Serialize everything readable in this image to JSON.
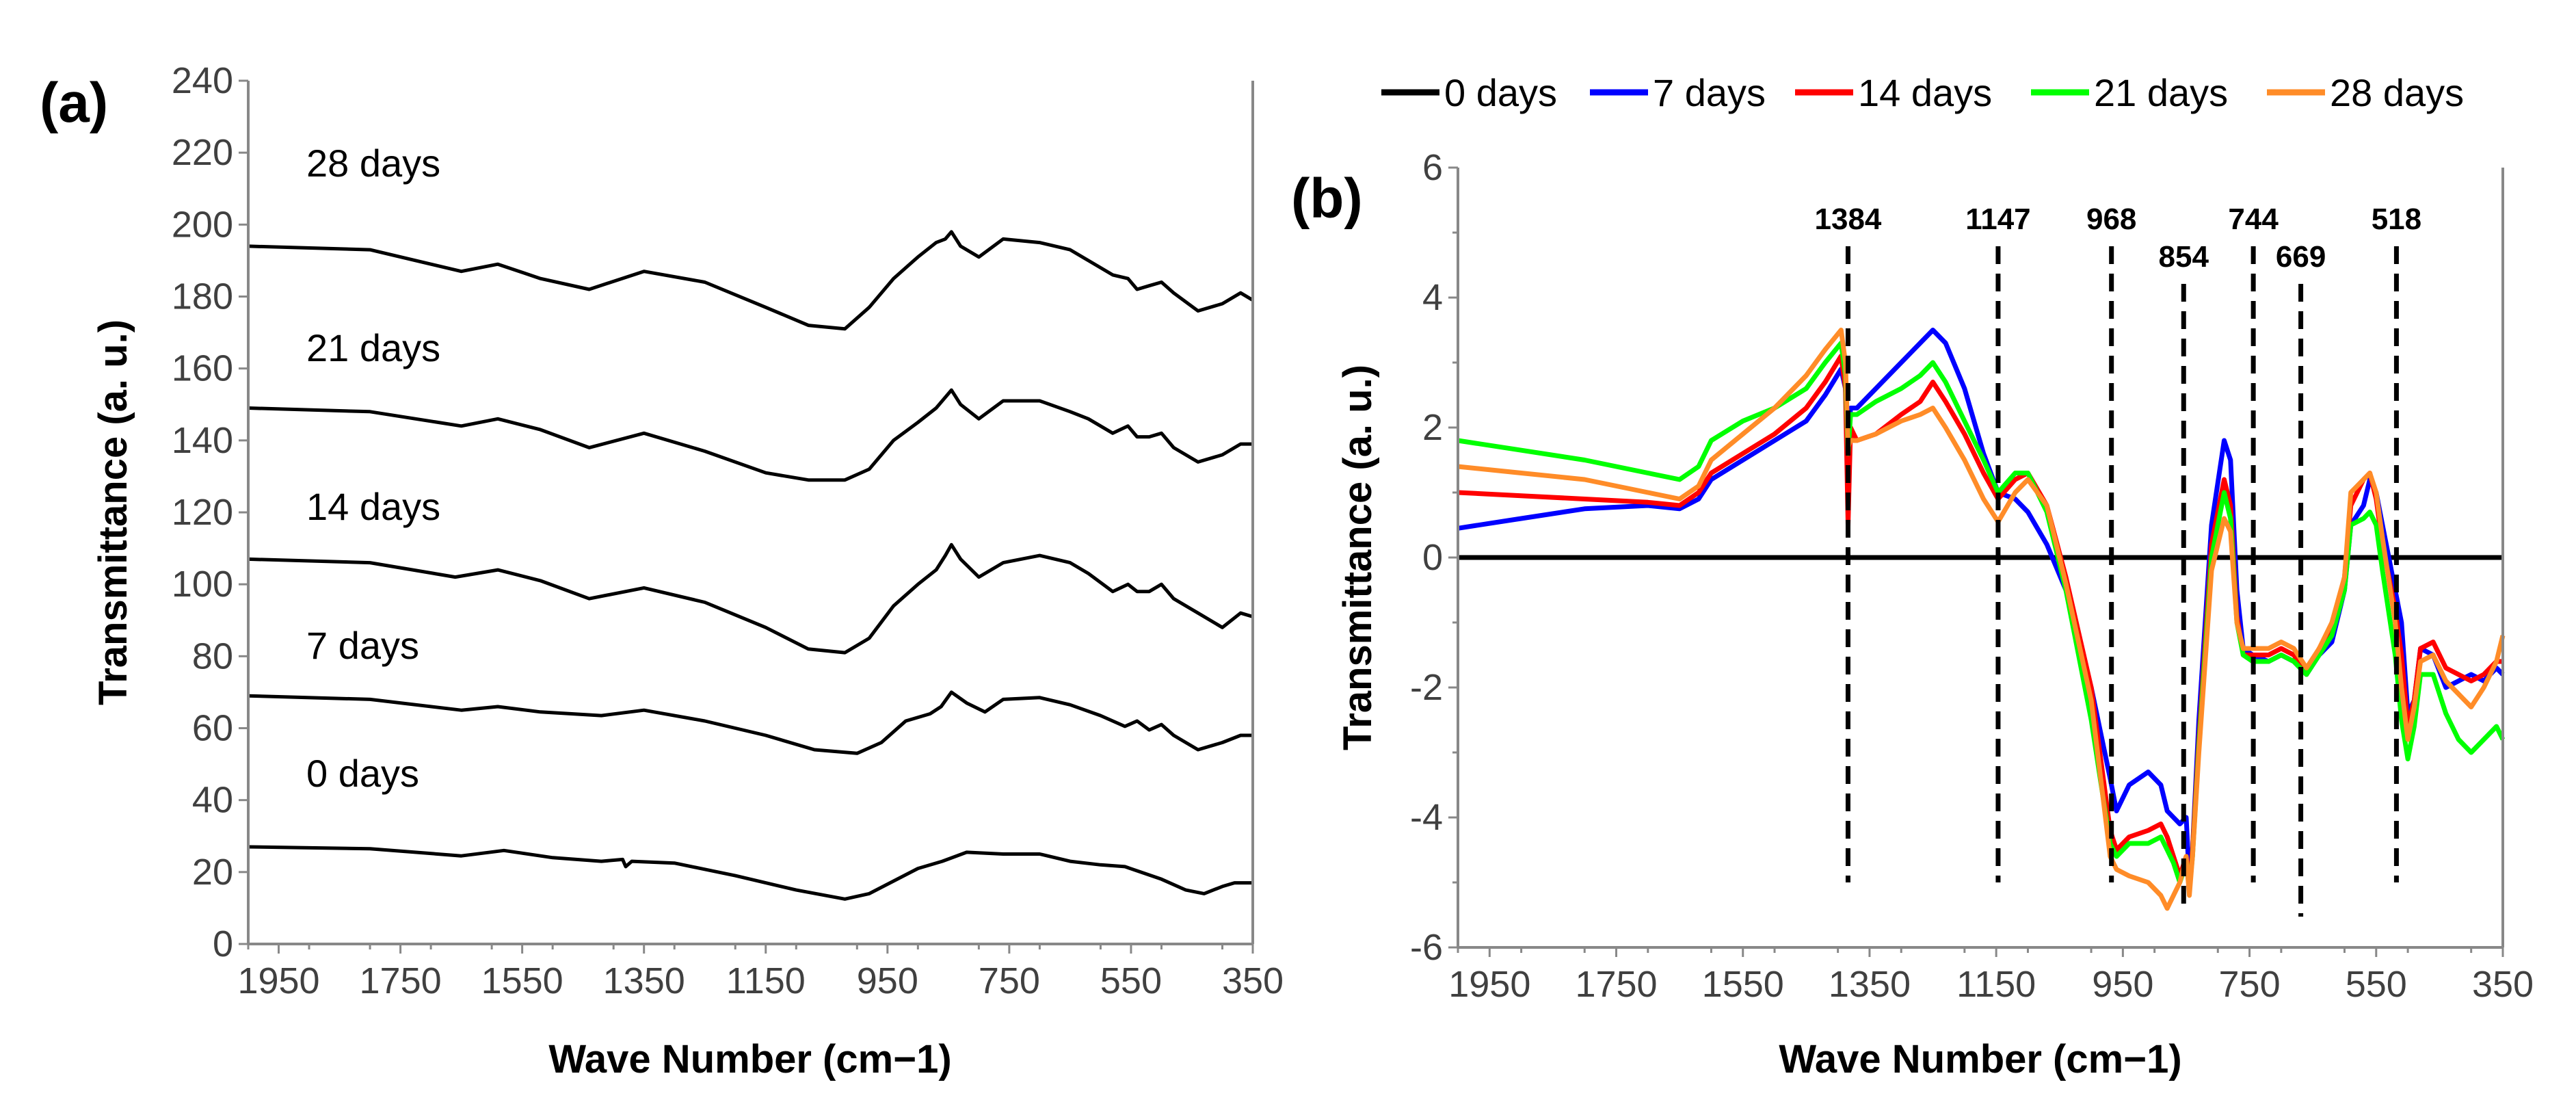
{
  "chart_data": [
    {
      "panel": "(a)",
      "type": "line",
      "xlabel": "Wave Number (cm−1)",
      "ylabel": "Transmittance (a. u.)",
      "xlim": [
        2000,
        350
      ],
      "x_reversed": true,
      "ylim": [
        0,
        240
      ],
      "xticks": [
        1950,
        1750,
        1550,
        1350,
        1150,
        950,
        750,
        550,
        350
      ],
      "yticks": [
        0,
        20,
        40,
        60,
        80,
        100,
        120,
        140,
        160,
        180,
        200,
        220,
        240
      ],
      "grid": false,
      "series": [
        {
          "name": "0 days",
          "color": "#000000",
          "x": [
            2000,
            1800,
            1650,
            1580,
            1500,
            1420,
            1385,
            1380,
            1370,
            1300,
            1200,
            1100,
            1020,
            980,
            900,
            860,
            820,
            760,
            700,
            650,
            600,
            560,
            500,
            460,
            430,
            400,
            380,
            350
          ],
          "y": [
            27,
            26.5,
            24.5,
            26,
            24,
            23,
            23.5,
            21.5,
            23,
            22.5,
            19,
            15,
            12.5,
            14,
            21,
            23,
            25.5,
            25,
            25,
            23,
            22,
            21.5,
            18,
            15,
            14,
            16,
            17,
            17
          ]
        },
        {
          "name": "7 days",
          "color": "#000000",
          "x": [
            2000,
            1800,
            1650,
            1590,
            1520,
            1420,
            1350,
            1250,
            1150,
            1070,
            1000,
            960,
            920,
            880,
            862,
            845,
            820,
            790,
            760,
            700,
            650,
            600,
            560,
            540,
            520,
            500,
            480,
            440,
            400,
            370,
            350
          ],
          "y": [
            69,
            68,
            65,
            66,
            64.5,
            63.5,
            65,
            62,
            58,
            54,
            53,
            56,
            62,
            64,
            66,
            70,
            67,
            64.5,
            68,
            68.5,
            66.5,
            63.5,
            60.5,
            62,
            59.5,
            61,
            58,
            54,
            56,
            58,
            58
          ]
        },
        {
          "name": "14 days",
          "color": "#000000",
          "x": [
            2000,
            1800,
            1660,
            1590,
            1520,
            1440,
            1350,
            1250,
            1150,
            1080,
            1020,
            980,
            940,
            900,
            870,
            855,
            845,
            830,
            800,
            760,
            700,
            650,
            620,
            580,
            555,
            540,
            520,
            500,
            480,
            440,
            400,
            370,
            350
          ],
          "y": [
            107,
            106,
            102,
            104,
            101,
            96,
            99,
            95,
            88,
            82,
            81,
            85,
            94,
            100,
            104,
            108,
            111,
            107,
            102,
            106,
            108,
            106,
            103,
            98,
            100,
            98,
            98,
            100,
            96,
            92,
            88,
            92,
            91
          ]
        },
        {
          "name": "21 days",
          "color": "#000000",
          "x": [
            2000,
            1800,
            1650,
            1590,
            1520,
            1440,
            1350,
            1250,
            1150,
            1080,
            1020,
            980,
            940,
            900,
            870,
            855,
            845,
            830,
            800,
            760,
            700,
            650,
            620,
            580,
            555,
            540,
            520,
            500,
            480,
            440,
            400,
            370,
            350
          ],
          "y": [
            149,
            148,
            144,
            146,
            143,
            138,
            142,
            137,
            131,
            129,
            129,
            132,
            140,
            145,
            149,
            152,
            154,
            150,
            146,
            151,
            151,
            148,
            146,
            142,
            144,
            141,
            141,
            142,
            138,
            134,
            136,
            139,
            139
          ]
        },
        {
          "name": "28 days",
          "color": "#000000",
          "x": [
            2000,
            1800,
            1650,
            1590,
            1520,
            1440,
            1350,
            1250,
            1150,
            1080,
            1020,
            980,
            940,
            900,
            870,
            855,
            845,
            830,
            800,
            760,
            700,
            650,
            620,
            580,
            555,
            540,
            520,
            500,
            480,
            440,
            400,
            370,
            350
          ],
          "y": [
            194,
            193,
            187,
            189,
            185,
            182,
            187,
            184,
            177,
            172,
            171,
            177,
            185,
            191,
            195,
            196,
            198,
            194,
            191,
            196,
            195,
            193,
            190,
            186,
            185,
            182,
            183,
            184,
            181,
            176,
            178,
            181,
            179
          ]
        }
      ],
      "annotations": [
        "28 days",
        "21 days",
        "14 days",
        "7 days",
        "0 days"
      ]
    },
    {
      "panel": "(b)",
      "type": "line",
      "xlabel": "Wave Number (cm−1)",
      "ylabel": "Transmittance (a. u.)",
      "xlim": [
        2000,
        350
      ],
      "x_reversed": true,
      "ylim": [
        -6,
        6
      ],
      "xticks": [
        1950,
        1750,
        1550,
        1350,
        1150,
        950,
        750,
        550,
        350
      ],
      "yticks": [
        -6,
        -4,
        -2,
        0,
        2,
        4,
        6
      ],
      "grid": false,
      "legend_position": "top",
      "peak_lines": [
        1384,
        1147,
        968,
        854,
        744,
        669,
        518
      ],
      "peak_labels": [
        "1384",
        "1147",
        "968",
        "854",
        "744",
        "669",
        "518"
      ],
      "series": [
        {
          "name": "0 days",
          "color": "#000000",
          "x": [
            2000,
            350
          ],
          "y": [
            0,
            0
          ]
        },
        {
          "name": "7 days",
          "color": "#0000ff",
          "x": [
            2000,
            1900,
            1800,
            1700,
            1650,
            1620,
            1600,
            1550,
            1500,
            1450,
            1420,
            1395,
            1388,
            1384,
            1380,
            1370,
            1340,
            1300,
            1270,
            1250,
            1230,
            1200,
            1170,
            1147,
            1120,
            1100,
            1070,
            1040,
            1000,
            970,
            960,
            940,
            910,
            890,
            880,
            870,
            860,
            850,
            845,
            840,
            830,
            810,
            790,
            780,
            770,
            760,
            745,
            720,
            700,
            680,
            660,
            640,
            620,
            600,
            590,
            570,
            560,
            550,
            540,
            520,
            510,
            500,
            490,
            480,
            460,
            440,
            420,
            400,
            380,
            360,
            350
          ],
          "y": [
            0.45,
            0.6,
            0.75,
            0.8,
            0.75,
            0.9,
            1.2,
            1.5,
            1.8,
            2.1,
            2.5,
            2.9,
            2.6,
            1.8,
            2.3,
            2.3,
            2.6,
            3.0,
            3.3,
            3.5,
            3.3,
            2.6,
            1.6,
            1.0,
            0.9,
            0.7,
            0.2,
            -0.5,
            -2.0,
            -3.4,
            -3.9,
            -3.5,
            -3.3,
            -3.5,
            -3.9,
            -4.0,
            -4.1,
            -4.0,
            -5.0,
            -4.5,
            -2.5,
            0.5,
            1.8,
            1.5,
            -0.5,
            -1.4,
            -1.5,
            -1.6,
            -1.5,
            -1.6,
            -1.8,
            -1.5,
            -1.3,
            -0.5,
            0.5,
            0.8,
            1.2,
            1.0,
            0.5,
            -0.5,
            -1.0,
            -2.4,
            -2.2,
            -1.4,
            -1.5,
            -2.0,
            -1.9,
            -1.8,
            -1.9,
            -1.7,
            -1.8
          ]
        },
        {
          "name": "14 days",
          "color": "#ff0000",
          "x": [
            2000,
            1900,
            1800,
            1700,
            1650,
            1620,
            1600,
            1550,
            1500,
            1450,
            1420,
            1395,
            1388,
            1384,
            1380,
            1370,
            1340,
            1300,
            1270,
            1250,
            1230,
            1200,
            1170,
            1147,
            1120,
            1100,
            1070,
            1040,
            1000,
            970,
            960,
            940,
            910,
            890,
            880,
            870,
            860,
            850,
            845,
            840,
            830,
            810,
            790,
            780,
            770,
            760,
            745,
            720,
            700,
            680,
            660,
            640,
            620,
            600,
            590,
            570,
            560,
            550,
            540,
            520,
            510,
            500,
            490,
            480,
            460,
            440,
            420,
            400,
            380,
            360,
            350
          ],
          "y": [
            1.0,
            0.95,
            0.9,
            0.85,
            0.8,
            1.0,
            1.3,
            1.6,
            1.9,
            2.3,
            2.7,
            3.1,
            2.6,
            0.5,
            2.0,
            1.8,
            1.9,
            2.2,
            2.4,
            2.7,
            2.4,
            1.9,
            1.3,
            0.9,
            1.2,
            1.3,
            0.8,
            -0.3,
            -2.0,
            -4.2,
            -4.5,
            -4.3,
            -4.2,
            -4.1,
            -4.3,
            -4.6,
            -4.9,
            -4.6,
            -5.1,
            -4.5,
            -2.8,
            0.2,
            1.2,
            0.8,
            -0.9,
            -1.5,
            -1.5,
            -1.5,
            -1.4,
            -1.5,
            -1.8,
            -1.4,
            -1.1,
            -0.3,
            0.8,
            1.2,
            1.3,
            0.9,
            0.2,
            -0.8,
            -1.5,
            -2.6,
            -2.2,
            -1.4,
            -1.3,
            -1.7,
            -1.8,
            -1.9,
            -1.8,
            -1.6,
            -1.6
          ]
        },
        {
          "name": "21 days",
          "color": "#00ff00",
          "x": [
            2000,
            1900,
            1800,
            1700,
            1650,
            1620,
            1600,
            1550,
            1500,
            1450,
            1420,
            1395,
            1388,
            1384,
            1380,
            1370,
            1340,
            1300,
            1270,
            1250,
            1230,
            1200,
            1170,
            1147,
            1120,
            1100,
            1070,
            1040,
            1000,
            970,
            960,
            940,
            910,
            890,
            880,
            870,
            860,
            850,
            845,
            840,
            830,
            810,
            790,
            780,
            770,
            760,
            745,
            720,
            700,
            680,
            660,
            640,
            620,
            600,
            590,
            570,
            560,
            550,
            540,
            520,
            510,
            500,
            490,
            480,
            460,
            440,
            420,
            400,
            380,
            360,
            350
          ],
          "y": [
            1.8,
            1.65,
            1.5,
            1.3,
            1.2,
            1.4,
            1.8,
            2.1,
            2.3,
            2.6,
            3.0,
            3.3,
            2.8,
            1.6,
            2.2,
            2.2,
            2.4,
            2.6,
            2.8,
            3.0,
            2.7,
            2.1,
            1.5,
            1.0,
            1.3,
            1.3,
            0.7,
            -0.5,
            -2.5,
            -4.4,
            -4.6,
            -4.4,
            -4.4,
            -4.3,
            -4.5,
            -4.7,
            -5.0,
            -4.7,
            -5.1,
            -4.6,
            -2.9,
            0.0,
            1.0,
            0.6,
            -1.0,
            -1.5,
            -1.6,
            -1.6,
            -1.5,
            -1.6,
            -1.8,
            -1.5,
            -1.2,
            -0.5,
            0.5,
            0.6,
            0.7,
            0.5,
            -0.2,
            -1.5,
            -2.5,
            -3.1,
            -2.6,
            -1.8,
            -1.8,
            -2.4,
            -2.8,
            -3.0,
            -2.8,
            -2.6,
            -2.8
          ]
        },
        {
          "name": "28 days",
          "color": "#ff8c28",
          "x": [
            2000,
            1900,
            1800,
            1700,
            1650,
            1620,
            1600,
            1550,
            1500,
            1450,
            1420,
            1395,
            1388,
            1384,
            1380,
            1370,
            1340,
            1300,
            1270,
            1250,
            1230,
            1200,
            1170,
            1147,
            1120,
            1100,
            1070,
            1040,
            1000,
            970,
            960,
            940,
            910,
            890,
            880,
            870,
            860,
            850,
            845,
            840,
            830,
            810,
            790,
            780,
            770,
            760,
            745,
            720,
            700,
            680,
            660,
            640,
            620,
            600,
            590,
            570,
            560,
            550,
            540,
            520,
            510,
            500,
            490,
            480,
            460,
            440,
            420,
            400,
            380,
            360,
            350
          ],
          "y": [
            1.4,
            1.3,
            1.2,
            1.0,
            0.9,
            1.1,
            1.5,
            1.9,
            2.3,
            2.8,
            3.2,
            3.5,
            3.0,
            1.7,
            1.8,
            1.8,
            1.9,
            2.1,
            2.2,
            2.3,
            2.0,
            1.5,
            0.9,
            0.55,
            1.0,
            1.2,
            0.8,
            -0.4,
            -2.2,
            -4.6,
            -4.8,
            -4.9,
            -5.0,
            -5.2,
            -5.4,
            -5.2,
            -5.0,
            -4.6,
            -5.2,
            -4.6,
            -3.0,
            -0.2,
            0.6,
            0.4,
            -1.0,
            -1.4,
            -1.4,
            -1.4,
            -1.3,
            -1.4,
            -1.7,
            -1.4,
            -1.0,
            -0.3,
            1.0,
            1.2,
            1.3,
            1.0,
            0.3,
            -1.0,
            -2.0,
            -2.8,
            -2.3,
            -1.6,
            -1.5,
            -1.9,
            -2.1,
            -2.3,
            -2.0,
            -1.6,
            -1.2
          ]
        }
      ]
    }
  ]
}
